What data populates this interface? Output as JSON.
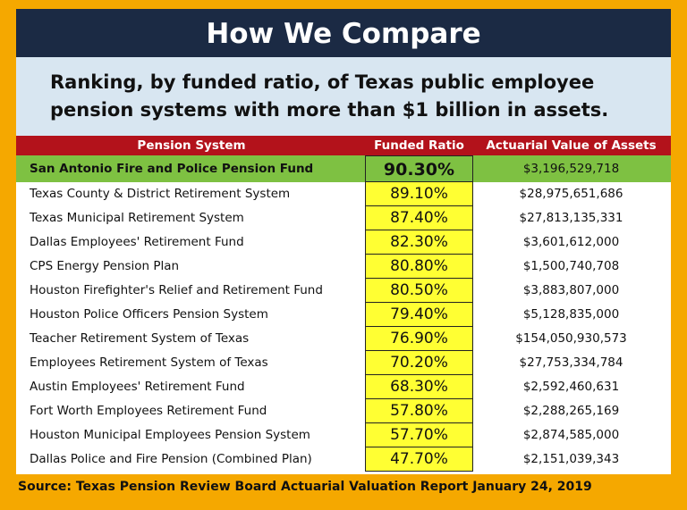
{
  "title": "How We Compare",
  "subtitle_line1": "Ranking, by funded ratio, of Texas public employee",
  "subtitle_line2": "pension systems with more than $1 billion in assets.",
  "table": {
    "headers": [
      "Pension System",
      "Funded Ratio",
      "Actuarial Value of Assets"
    ],
    "rows": [
      {
        "name": "San Antonio Fire and Police Pension Fund",
        "ratio": "90.30%",
        "assets": "$3,196,529,718"
      },
      {
        "name": "Texas County & District Retirement System",
        "ratio": "89.10%",
        "assets": "$28,975,651,686"
      },
      {
        "name": "Texas Municipal Retirement System",
        "ratio": "87.40%",
        "assets": "$27,813,135,331"
      },
      {
        "name": "Dallas Employees' Retirement Fund",
        "ratio": "82.30%",
        "assets": "$3,601,612,000"
      },
      {
        "name": "CPS Energy Pension Plan",
        "ratio": "80.80%",
        "assets": "$1,500,740,708"
      },
      {
        "name": "Houston Firefighter's Relief and Retirement Fund",
        "ratio": "80.50%",
        "assets": "$3,883,807,000"
      },
      {
        "name": "Houston Police Officers Pension System",
        "ratio": "79.40%",
        "assets": "$5,128,835,000"
      },
      {
        "name": "Teacher Retirement System of Texas",
        "ratio": "76.90%",
        "assets": "$154,050,930,573"
      },
      {
        "name": "Employees Retirement System of Texas",
        "ratio": "70.20%",
        "assets": "$27,753,334,784"
      },
      {
        "name": "Austin Employees' Retirement Fund",
        "ratio": "68.30%",
        "assets": "$2,592,460,631"
      },
      {
        "name": "Fort Worth Employees Retirement Fund",
        "ratio": "57.80%",
        "assets": "$2,288,265,169"
      },
      {
        "name": "Houston Municipal Employees Pension System",
        "ratio": "57.70%",
        "assets": "$2,874,585,000"
      },
      {
        "name": "Dallas Police and Fire Pension (Combined Plan)",
        "ratio": "47.70%",
        "assets": "$2,151,039,343"
      }
    ]
  },
  "source": "Source:  Texas Pension Review Board Actuarial Valuation Report January 24, 2019",
  "colors": {
    "frame": "#f5a800",
    "title_bg": "#1b2a44",
    "subtitle_bg": "#d8e6f1",
    "header_bg": "#b3121b",
    "highlight_row": "#7ec142",
    "ratio_cell": "#ffff33"
  }
}
